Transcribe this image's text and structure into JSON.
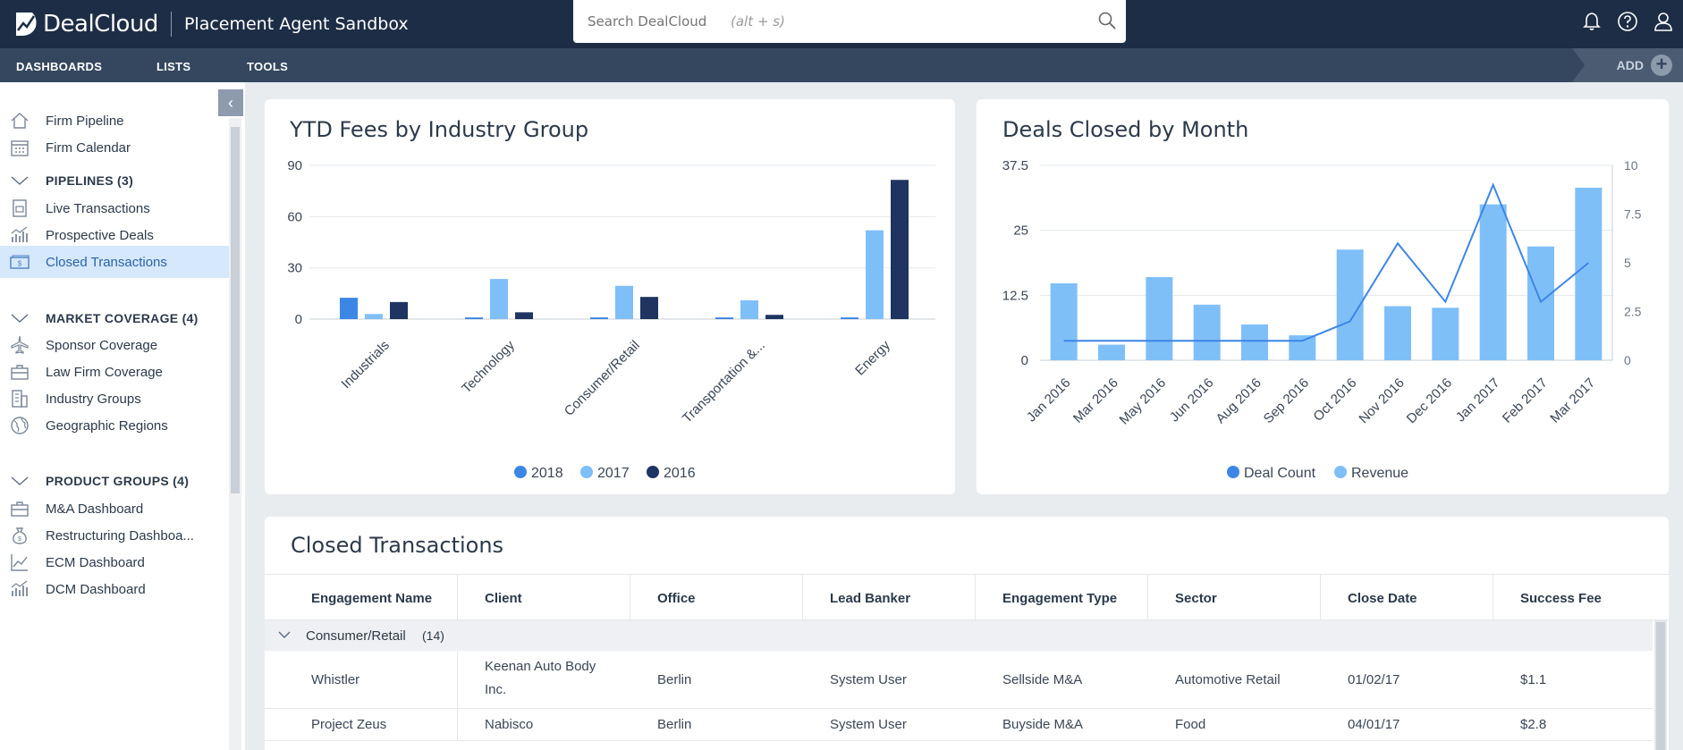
{
  "app": {
    "brand": "DealCloud",
    "title": "Placement Agent Sandbox"
  },
  "search": {
    "placeholder": "Search DealCloud",
    "hint": "(alt + s)"
  },
  "icons": {
    "search": "search-icon",
    "bell": "bell-icon",
    "help": "help-icon",
    "user": "user-icon"
  },
  "nav": {
    "items": [
      "DASHBOARDS",
      "LISTS",
      "TOOLS"
    ],
    "add_label": "ADD",
    "add_symbol": "+"
  },
  "sidebar": {
    "collapse_symbol": "‹",
    "items": [
      {
        "label": "Firm Pipeline",
        "icon": "home-icon"
      },
      {
        "label": "Firm Calendar",
        "icon": "calendar-icon"
      },
      {
        "label": "PIPELINES (3)",
        "icon": "chevron-down-icon",
        "group": true
      },
      {
        "label": "Live Transactions",
        "icon": "document-icon"
      },
      {
        "label": "Prospective Deals",
        "icon": "bar-chart-icon"
      },
      {
        "label": "Closed Transactions",
        "icon": "cash-icon",
        "active": true
      },
      {
        "label": "MARKET COVERAGE (4)",
        "icon": "chevron-down-icon",
        "group": true
      },
      {
        "label": "Sponsor Coverage",
        "icon": "airplane-icon"
      },
      {
        "label": "Law Firm Coverage",
        "icon": "briefcase-icon"
      },
      {
        "label": "Industry Groups",
        "icon": "building-icon"
      },
      {
        "label": "Geographic Regions",
        "icon": "globe-icon"
      },
      {
        "label": "PRODUCT GROUPS (4)",
        "icon": "chevron-down-icon",
        "group": true
      },
      {
        "label": "M&A Dashboard",
        "icon": "briefcase-icon"
      },
      {
        "label": "Restructuring Dashboa...",
        "icon": "money-bag-icon"
      },
      {
        "label": "ECM Dashboard",
        "icon": "line-chart-icon"
      },
      {
        "label": "DCM Dashboard",
        "icon": "bar-chart-icon"
      }
    ]
  },
  "chart_data": [
    {
      "type": "bar",
      "title": "YTD Fees by Industry Group",
      "categories": [
        "Industrials",
        "Technology",
        "Consumer/Retail",
        "Transportation &...",
        "Energy"
      ],
      "series": [
        {
          "name": "2018",
          "color": "#3c86e6",
          "values": [
            12.5,
            1,
            1,
            1,
            1
          ]
        },
        {
          "name": "2017",
          "color": "#7fbff8",
          "values": [
            3,
            23.5,
            19.5,
            11,
            52
          ]
        },
        {
          "name": "2016",
          "color": "#1f3461",
          "values": [
            10,
            4,
            13,
            2.5,
            81.5
          ]
        }
      ],
      "yticks": [
        "0",
        "30",
        "60",
        "90"
      ],
      "ylim": [
        0,
        90
      ],
      "legend": "bottom"
    },
    {
      "type": "bar+line",
      "title": "Deals Closed by Month",
      "categories": [
        "Jan 2016",
        "Mar 2016",
        "May 2016",
        "Jun 2016",
        "Aug 2016",
        "Sep 2016",
        "Oct 2016",
        "Nov 2016",
        "Dec 2016",
        "Jan 2017",
        "Feb 2017",
        "Mar 2017"
      ],
      "series": [
        {
          "name": "Deal Count",
          "color": "#3c86e6",
          "type": "line",
          "axis": "right",
          "values": [
            1,
            1,
            1,
            1,
            1,
            1,
            2,
            6,
            3,
            9,
            3,
            5
          ]
        },
        {
          "name": "Revenue",
          "color": "#7fbff8",
          "type": "bar",
          "axis": "left",
          "values": [
            14.8,
            3,
            16,
            10.7,
            6.9,
            4.8,
            21.3,
            10.4,
            10.1,
            30,
            21.9,
            33.2
          ]
        }
      ],
      "yticks_left": [
        "0",
        "12.5",
        "25",
        "37.5"
      ],
      "ylim_left": [
        0,
        37.5
      ],
      "yticks_right": [
        "0",
        "2.5",
        "5",
        "7.5",
        "10"
      ],
      "ylim_right": [
        0,
        10
      ],
      "legend": "bottom"
    }
  ],
  "table": {
    "title": "Closed Transactions",
    "columns": [
      "Engagement Name",
      "Client",
      "Office",
      "Lead Banker",
      "Engagement Type",
      "Sector",
      "Close Date",
      "Success Fee"
    ],
    "group": {
      "label": "Consumer/Retail",
      "count": "(14)"
    },
    "rows": [
      [
        "Whistler",
        "Keenan Auto Body Inc.",
        "Berlin",
        "System User",
        "Sellside M&A",
        "Automotive Retail",
        "01/02/17",
        "$1.1"
      ],
      [
        "Project Zeus",
        "Nabisco",
        "Berlin",
        "System User",
        "Buyside M&A",
        "Food",
        "04/01/17",
        "$2.8"
      ]
    ]
  }
}
